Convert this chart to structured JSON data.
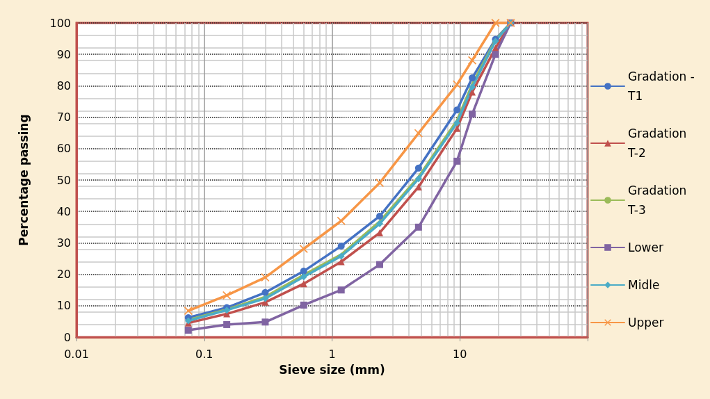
{
  "chart_data": {
    "type": "line",
    "xlabel": "Sieve size (mm)",
    "ylabel": "Percentage passing",
    "x": [
      0.075,
      0.15,
      0.3,
      0.6,
      1.18,
      2.36,
      4.75,
      9.5,
      12.5,
      19,
      25
    ],
    "series": [
      {
        "name": "Gradation - T1",
        "color": "#4472c4",
        "marker": "circle",
        "values": [
          6.2,
          9.4,
          14.2,
          21,
          29,
          38.5,
          53.8,
          72.3,
          82.5,
          94.8,
          100
        ]
      },
      {
        "name": "Gradation T-2",
        "color": "#c0504d",
        "marker": "triangle",
        "values": [
          4.5,
          7.4,
          11.1,
          17,
          24,
          33.2,
          47.8,
          66.4,
          78,
          92,
          100
        ]
      },
      {
        "name": "Gradation T-3",
        "color": "#9bbb59",
        "marker": "none",
        "values": [
          5.5,
          8.8,
          12.8,
          19.8,
          26.3,
          36.8,
          51,
          69,
          80.5,
          94.5,
          100
        ]
      },
      {
        "name": "Lower",
        "color": "#8064a2",
        "marker": "square",
        "values": [
          2.2,
          4,
          4.8,
          10.2,
          15,
          23.1,
          35,
          56,
          71,
          90,
          100
        ]
      },
      {
        "name": "Midle",
        "color": "#4bacc6",
        "marker": "diamond",
        "values": [
          5.2,
          8.6,
          12.3,
          19.2,
          25.8,
          36.1,
          50.4,
          68.2,
          79.6,
          94.2,
          100
        ]
      },
      {
        "name": "Upper",
        "color": "#f79646",
        "marker": "cross",
        "values": [
          8.4,
          13.3,
          19,
          28.1,
          37,
          49.1,
          64.9,
          80.4,
          88.1,
          100,
          100
        ]
      }
    ],
    "log": "x",
    "xlim": [
      0.01,
      100
    ],
    "xticks": [
      0.01,
      0.1,
      1,
      10,
      {
        "value": 100,
        "label": null
      }
    ],
    "ylim": [
      0,
      100
    ],
    "yticks": [
      0,
      10,
      20,
      30,
      40,
      50,
      60,
      70,
      80,
      90,
      100
    ],
    "grid": true,
    "legend": "right",
    "line_style": "solid"
  }
}
